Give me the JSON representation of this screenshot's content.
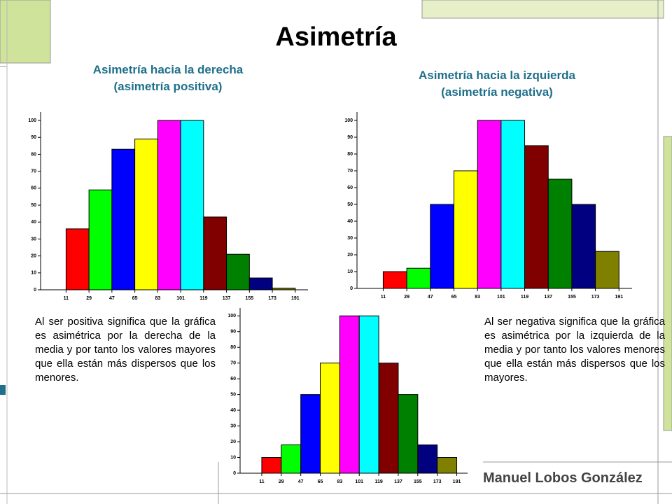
{
  "title": "Asimetría",
  "notes": [
    "Al ser positiva significa que la gráfica es asimétrica por la derecha de la media y por tanto los valores mayores que ella están más dispersos que los menores.",
    "Al ser negativa significa que la gráfica es asimétrica por la izquierda de la media y por tanto los valores menores que ella están más dispersos que los mayores."
  ],
  "footer": "Manuel Lobos González",
  "chart_data": [
    {
      "type": "histogram",
      "title": "Asimetría hacia la derecha",
      "subtitle": "(asimetría positiva)",
      "bins": [
        11,
        29,
        47,
        65,
        83,
        101,
        119,
        137,
        155,
        173,
        191
      ],
      "values": [
        36,
        59,
        83,
        89,
        100,
        100,
        43,
        21,
        7,
        1
      ],
      "colors": [
        "#ff0000",
        "#00ff00",
        "#0000ff",
        "#ffff00",
        "#ff00ff",
        "#00ffff",
        "#800000",
        "#008000",
        "#000080",
        "#808000"
      ],
      "xlim": [
        -9,
        201
      ],
      "ylim": [
        0,
        105
      ],
      "yticks": [
        0,
        10,
        20,
        30,
        40,
        50,
        60,
        70,
        80,
        90,
        100
      ]
    },
    {
      "type": "histogram",
      "title": "Asimetría hacia la izquierda",
      "subtitle": "(asimetría negativa)",
      "bins": [
        11,
        29,
        47,
        65,
        83,
        101,
        119,
        137,
        155,
        173,
        191
      ],
      "values": [
        10,
        12,
        50,
        70,
        100,
        100,
        85,
        65,
        50,
        22
      ],
      "colors": [
        "#ff0000",
        "#00ff00",
        "#0000ff",
        "#ffff00",
        "#ff00ff",
        "#00ffff",
        "#800000",
        "#008000",
        "#000080",
        "#808000"
      ],
      "xlim": [
        -9,
        201
      ],
      "ylim": [
        0,
        105
      ],
      "yticks": [
        0,
        10,
        20,
        30,
        40,
        50,
        60,
        70,
        80,
        90,
        100
      ]
    },
    {
      "type": "histogram",
      "bins": [
        11,
        29,
        47,
        65,
        83,
        101,
        119,
        137,
        155,
        173,
        191
      ],
      "values": [
        10,
        18,
        50,
        70,
        100,
        100,
        70,
        50,
        18,
        10
      ],
      "colors": [
        "#ff0000",
        "#00ff00",
        "#0000ff",
        "#ffff00",
        "#ff00ff",
        "#00ffff",
        "#800000",
        "#008000",
        "#000080",
        "#808000"
      ],
      "xlim": [
        -9,
        201
      ],
      "ylim": [
        0,
        105
      ],
      "yticks": [
        0,
        10,
        20,
        30,
        40,
        50,
        60,
        70,
        80,
        90,
        100
      ]
    }
  ]
}
